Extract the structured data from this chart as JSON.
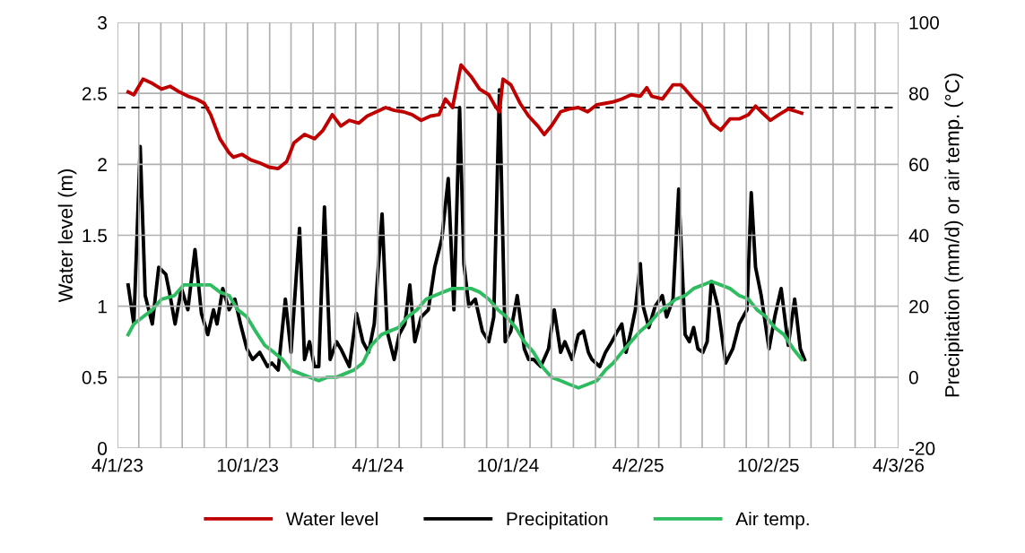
{
  "chart_data": {
    "type": "line",
    "ylabel": "Water level (m)",
    "y2label": "Precipitation (mm/d) or air temp. (°C)",
    "xlim": [
      "2023-04-01",
      "2026-04-03"
    ],
    "xticks": [
      {
        "value": "2023-04-01",
        "label": "4/1/23"
      },
      {
        "value": "2023-05-01",
        "label": null
      },
      {
        "value": "2023-06-01",
        "label": null
      },
      {
        "value": "2023-07-01",
        "label": null
      },
      {
        "value": "2023-08-01",
        "label": null
      },
      {
        "value": "2023-09-01",
        "label": null
      },
      {
        "value": "2023-10-01",
        "label": "10/1/23"
      },
      {
        "value": "2023-11-01",
        "label": null
      },
      {
        "value": "2023-12-01",
        "label": null
      },
      {
        "value": "2024-01-01",
        "label": null
      },
      {
        "value": "2024-02-01",
        "label": null
      },
      {
        "value": "2024-03-01",
        "label": null
      },
      {
        "value": "2024-04-01",
        "label": "4/1/24"
      },
      {
        "value": "2024-05-01",
        "label": null
      },
      {
        "value": "2024-06-01",
        "label": null
      },
      {
        "value": "2024-07-01",
        "label": null
      },
      {
        "value": "2024-08-01",
        "label": null
      },
      {
        "value": "2024-09-01",
        "label": null
      },
      {
        "value": "2024-10-01",
        "label": "10/1/24"
      },
      {
        "value": "2024-11-01",
        "label": null
      },
      {
        "value": "2024-12-01",
        "label": null
      },
      {
        "value": "2025-01-01",
        "label": null
      },
      {
        "value": "2025-02-01",
        "label": null
      },
      {
        "value": "2025-03-01",
        "label": null
      },
      {
        "value": "2025-04-02",
        "label": "4/2/25"
      },
      {
        "value": "2025-05-01",
        "label": null
      },
      {
        "value": "2025-06-01",
        "label": null
      },
      {
        "value": "2025-07-01",
        "label": null
      },
      {
        "value": "2025-08-01",
        "label": null
      },
      {
        "value": "2025-09-01",
        "label": null
      },
      {
        "value": "2025-10-02",
        "label": "10/2/25"
      },
      {
        "value": "2025-11-01",
        "label": null
      },
      {
        "value": "2025-12-01",
        "label": null
      },
      {
        "value": "2026-01-01",
        "label": null
      },
      {
        "value": "2026-02-01",
        "label": null
      },
      {
        "value": "2026-03-01",
        "label": null
      },
      {
        "value": "2026-04-03",
        "label": "4/3/26"
      }
    ],
    "ylim": [
      0,
      3
    ],
    "yticks": [
      0,
      0.5,
      1,
      1.5,
      2,
      2.5,
      3
    ],
    "y2lim": [
      -20,
      100
    ],
    "y2ticks": [
      -20,
      0,
      20,
      40,
      60,
      80,
      100
    ],
    "grid": true,
    "legend": "bottom",
    "marker": "none",
    "line_style": "solid",
    "ref_lines": [
      {
        "axis": "y",
        "value": 2.4,
        "color": "#000000",
        "line_style": "dashed"
      }
    ],
    "series": [
      {
        "name": "Water level",
        "color": "#c00000",
        "x": [
          "2023-04-16",
          "2023-04-24",
          "2023-05-07",
          "2023-05-20",
          "2023-06-02",
          "2023-06-14",
          "2023-06-27",
          "2023-07-09",
          "2023-07-21",
          "2023-08-01",
          "2023-08-10",
          "2023-08-23",
          "2023-09-05",
          "2023-09-11",
          "2023-09-23",
          "2023-10-06",
          "2023-10-18",
          "2023-10-31",
          "2023-11-13",
          "2023-11-25",
          "2023-12-05",
          "2023-12-20",
          "2024-01-03",
          "2024-01-15",
          "2024-01-28",
          "2024-02-09",
          "2024-02-21",
          "2024-03-05",
          "2024-03-17",
          "2024-03-30",
          "2024-04-12",
          "2024-04-24",
          "2024-05-07",
          "2024-05-19",
          "2024-06-01",
          "2024-06-14",
          "2024-06-26",
          "2024-07-05",
          "2024-07-15",
          "2024-07-27",
          "2024-08-10",
          "2024-08-22",
          "2024-09-04",
          "2024-09-13",
          "2024-09-19",
          "2024-09-24",
          "2024-10-05",
          "2024-10-18",
          "2024-10-30",
          "2024-11-12",
          "2024-11-21",
          "2024-12-01",
          "2024-12-14",
          "2024-12-26",
          "2025-01-08",
          "2025-01-21",
          "2025-02-03",
          "2025-02-15",
          "2025-02-26",
          "2025-03-10",
          "2025-03-23",
          "2025-04-05",
          "2025-04-14",
          "2025-04-21",
          "2025-05-06",
          "2025-05-21",
          "2025-06-01",
          "2025-06-07",
          "2025-06-19",
          "2025-07-02",
          "2025-07-14",
          "2025-07-27",
          "2025-08-09",
          "2025-08-22",
          "2025-09-04",
          "2025-09-14",
          "2025-09-22",
          "2025-10-05",
          "2025-10-17",
          "2025-10-30",
          "2025-11-12",
          "2025-11-18"
        ],
        "values": [
          2.51,
          2.49,
          2.6,
          2.57,
          2.53,
          2.55,
          2.51,
          2.48,
          2.46,
          2.43,
          2.35,
          2.18,
          2.08,
          2.05,
          2.07,
          2.03,
          2.01,
          1.98,
          1.97,
          2.02,
          2.15,
          2.21,
          2.18,
          2.24,
          2.35,
          2.27,
          2.31,
          2.29,
          2.34,
          2.37,
          2.4,
          2.38,
          2.37,
          2.35,
          2.31,
          2.34,
          2.35,
          2.46,
          2.4,
          2.7,
          2.62,
          2.53,
          2.49,
          2.41,
          2.37,
          2.6,
          2.56,
          2.43,
          2.34,
          2.27,
          2.21,
          2.27,
          2.37,
          2.39,
          2.4,
          2.37,
          2.42,
          2.43,
          2.44,
          2.46,
          2.49,
          2.48,
          2.54,
          2.48,
          2.46,
          2.56,
          2.56,
          2.53,
          2.46,
          2.4,
          2.29,
          2.24,
          2.32,
          2.32,
          2.35,
          2.41,
          2.37,
          2.31,
          2.35,
          2.39,
          2.37,
          2.36
        ]
      },
      {
        "name": "Precipitation",
        "color": "#000000",
        "axis": "y2",
        "x": [
          "2023-04-16",
          "2023-04-24",
          "2023-05-03",
          "2023-05-10",
          "2023-05-20",
          "2023-05-29",
          "2023-06-08",
          "2023-06-14",
          "2023-06-21",
          "2023-06-30",
          "2023-07-09",
          "2023-07-19",
          "2023-07-28",
          "2023-08-06",
          "2023-08-14",
          "2023-08-19",
          "2023-08-27",
          "2023-09-05",
          "2023-09-13",
          "2023-09-21",
          "2023-09-30",
          "2023-10-08",
          "2023-10-18",
          "2023-10-29",
          "2023-11-04",
          "2023-11-13",
          "2023-11-23",
          "2023-12-01",
          "2023-12-13",
          "2023-12-20",
          "2023-12-27",
          "2024-01-03",
          "2024-01-09",
          "2024-01-17",
          "2024-01-25",
          "2024-02-03",
          "2024-02-09",
          "2024-02-21",
          "2024-03-02",
          "2024-03-11",
          "2024-03-19",
          "2024-03-27",
          "2024-04-07",
          "2024-04-14",
          "2024-04-24",
          "2024-05-01",
          "2024-05-09",
          "2024-05-16",
          "2024-05-23",
          "2024-06-01",
          "2024-06-11",
          "2024-06-20",
          "2024-06-30",
          "2024-07-09",
          "2024-07-17",
          "2024-07-25",
          "2024-07-31",
          "2024-08-07",
          "2024-08-16",
          "2024-08-26",
          "2024-09-04",
          "2024-09-11",
          "2024-09-19",
          "2024-09-27",
          "2024-10-05",
          "2024-10-14",
          "2024-10-24",
          "2024-10-30",
          "2024-11-06",
          "2024-11-16",
          "2024-11-27",
          "2024-12-05",
          "2024-12-14",
          "2024-12-20",
          "2024-12-30",
          "2025-01-08",
          "2025-01-15",
          "2025-01-22",
          "2025-01-27",
          "2025-02-07",
          "2025-02-15",
          "2025-02-24",
          "2025-03-04",
          "2025-03-10",
          "2025-03-16",
          "2025-03-23",
          "2025-03-29",
          "2025-04-05",
          "2025-04-09",
          "2025-04-17",
          "2025-04-26",
          "2025-05-06",
          "2025-05-12",
          "2025-05-21",
          "2025-05-29",
          "2025-06-07",
          "2025-06-13",
          "2025-06-19",
          "2025-06-25",
          "2025-07-02",
          "2025-07-08",
          "2025-07-14",
          "2025-07-23",
          "2025-08-03",
          "2025-08-13",
          "2025-08-22",
          "2025-09-02",
          "2025-09-08",
          "2025-09-14",
          "2025-09-22",
          "2025-10-03",
          "2025-10-11",
          "2025-10-20",
          "2025-10-30",
          "2025-11-08",
          "2025-11-16",
          "2025-11-22"
        ],
        "values": [
          26,
          15,
          65,
          23,
          15,
          31,
          29,
          23,
          15,
          25,
          19,
          36,
          18,
          12,
          19,
          15,
          25,
          19,
          22,
          15,
          8,
          5,
          7,
          3,
          4,
          2,
          22,
          7,
          42,
          5,
          10,
          3,
          3,
          48,
          5,
          10,
          8,
          3,
          18,
          10,
          7,
          15,
          46,
          13,
          5,
          12,
          15,
          26,
          10,
          17,
          19,
          31,
          39,
          56,
          19,
          76,
          32,
          20,
          22,
          13,
          10,
          17,
          81,
          10,
          13,
          23,
          8,
          5,
          5,
          3,
          8,
          19,
          7,
          10,
          5,
          12,
          13,
          7,
          5,
          3,
          7,
          10,
          13,
          15,
          7,
          13,
          19,
          32,
          20,
          14,
          20,
          23,
          17,
          22,
          53,
          12,
          10,
          14,
          8,
          7,
          10,
          27,
          20,
          4,
          8,
          15,
          19,
          52,
          31,
          23,
          8,
          17,
          25,
          9,
          22,
          8,
          5
        ]
      },
      {
        "name": "Air temp.",
        "color": "#2dbd60",
        "axis": "y2",
        "x": [
          "2023-04-16",
          "2023-04-24",
          "2023-05-07",
          "2023-05-20",
          "2023-06-02",
          "2023-06-20",
          "2023-07-03",
          "2023-07-15",
          "2023-07-28",
          "2023-08-10",
          "2023-08-23",
          "2023-09-05",
          "2023-09-17",
          "2023-09-30",
          "2023-10-12",
          "2023-10-25",
          "2023-11-07",
          "2023-11-19",
          "2023-12-01",
          "2023-12-14",
          "2023-12-27",
          "2024-01-09",
          "2024-01-21",
          "2024-02-03",
          "2024-02-15",
          "2024-02-27",
          "2024-03-11",
          "2024-03-23",
          "2024-04-06",
          "2024-04-18",
          "2024-04-30",
          "2024-05-13",
          "2024-05-26",
          "2024-06-08",
          "2024-06-20",
          "2024-07-02",
          "2024-07-15",
          "2024-07-27",
          "2024-08-10",
          "2024-08-22",
          "2024-09-04",
          "2024-09-17",
          "2024-09-29",
          "2024-10-12",
          "2024-10-24",
          "2024-11-06",
          "2024-11-18",
          "2024-12-01",
          "2024-12-14",
          "2024-12-26",
          "2025-01-08",
          "2025-01-21",
          "2025-02-03",
          "2025-02-15",
          "2025-02-26",
          "2025-03-10",
          "2025-03-23",
          "2025-04-05",
          "2025-04-17",
          "2025-04-30",
          "2025-05-12",
          "2025-05-25",
          "2025-06-07",
          "2025-06-19",
          "2025-07-02",
          "2025-07-14",
          "2025-07-27",
          "2025-08-09",
          "2025-08-22",
          "2025-09-04",
          "2025-09-16",
          "2025-09-29",
          "2025-10-11",
          "2025-10-24",
          "2025-11-06",
          "2025-11-18"
        ],
        "values": [
          12,
          15,
          17,
          19,
          22,
          23,
          26,
          26,
          26,
          26,
          24,
          23,
          19,
          17,
          13,
          9,
          7,
          5,
          2,
          1,
          0,
          -1,
          0,
          0,
          1,
          2,
          4,
          9,
          12,
          13,
          14,
          17,
          19,
          22,
          23,
          24,
          25,
          25,
          25,
          24,
          22,
          19,
          17,
          14,
          10,
          7,
          3,
          0,
          -1,
          -2,
          -3,
          -2,
          -1,
          2,
          4,
          7,
          10,
          13,
          15,
          18,
          20,
          22,
          23,
          25,
          26,
          27,
          26,
          25,
          23,
          22,
          19,
          17,
          14,
          12,
          8,
          5
        ]
      }
    ]
  }
}
